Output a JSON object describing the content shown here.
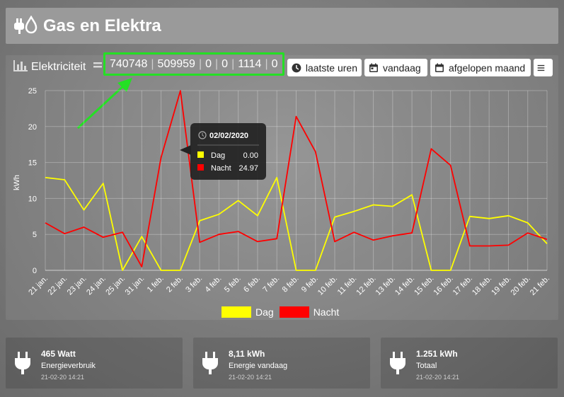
{
  "header": {
    "title": "Gas en Elektra",
    "icon": "plug-drop-icon"
  },
  "panel": {
    "title": "Elektriciteit",
    "counters": [
      "740748",
      "509959",
      "0",
      "0",
      "1114",
      "0"
    ],
    "buttons": {
      "hours": "laatste uren",
      "today": "vandaag",
      "month": "afgelopen maand"
    },
    "highlight_color": "#24e024"
  },
  "chart_data": {
    "type": "line",
    "ylabel": "kWh",
    "ylim": [
      0,
      25
    ],
    "yticks": [
      0,
      5,
      10,
      15,
      20,
      25
    ],
    "categories": [
      "21 jan.",
      "22 jan.",
      "23 jan.",
      "24 jan.",
      "25 jan.",
      "31 jan.",
      "1 feb.",
      "2 feb.",
      "3 feb.",
      "4 feb.",
      "5 feb.",
      "6 feb.",
      "7 feb.",
      "8 feb.",
      "9 feb.",
      "10 feb.",
      "11 feb.",
      "12 feb.",
      "13 feb.",
      "14 feb.",
      "15 feb.",
      "16 feb.",
      "17 feb.",
      "18 feb.",
      "19 feb.",
      "20 feb.",
      "21 feb."
    ],
    "series": [
      {
        "name": "Dag",
        "color": "#ffff00",
        "values": [
          12.9,
          12.6,
          8.4,
          12.1,
          0,
          4.7,
          0,
          0,
          6.9,
          7.8,
          9.7,
          7.6,
          12.9,
          0,
          0,
          7.4,
          8.2,
          9.1,
          8.9,
          10.5,
          0,
          0,
          7.5,
          7.2,
          7.6,
          6.6,
          3.7
        ]
      },
      {
        "name": "Nacht",
        "color": "#ff0000",
        "values": [
          6.6,
          5.1,
          6.0,
          4.6,
          5.3,
          0.5,
          15.7,
          24.97,
          3.9,
          5.0,
          5.4,
          4.0,
          4.4,
          21.4,
          16.5,
          4.0,
          5.3,
          4.2,
          4.8,
          5.2,
          16.9,
          14.6,
          3.4,
          3.4,
          3.5,
          5.2,
          4.3
        ]
      }
    ],
    "tooltip": {
      "date": "02/02/2020",
      "rows": [
        {
          "name": "Dag",
          "value": "0.00",
          "color": "#ffff00"
        },
        {
          "name": "Nacht",
          "value": "24.97",
          "color": "#ff0000"
        }
      ]
    },
    "legend": [
      "Dag",
      "Nacht"
    ],
    "grid": true
  },
  "tiles": [
    {
      "value": "465 Watt",
      "label": "Energieverbruik",
      "time": "21-02-20 14:21"
    },
    {
      "value": "8,11 kWh",
      "label": "Energie vandaag",
      "time": "21-02-20 14:21"
    },
    {
      "value": "1.251 kWh",
      "label": "Totaal",
      "time": "21-02-20 14:21"
    }
  ]
}
